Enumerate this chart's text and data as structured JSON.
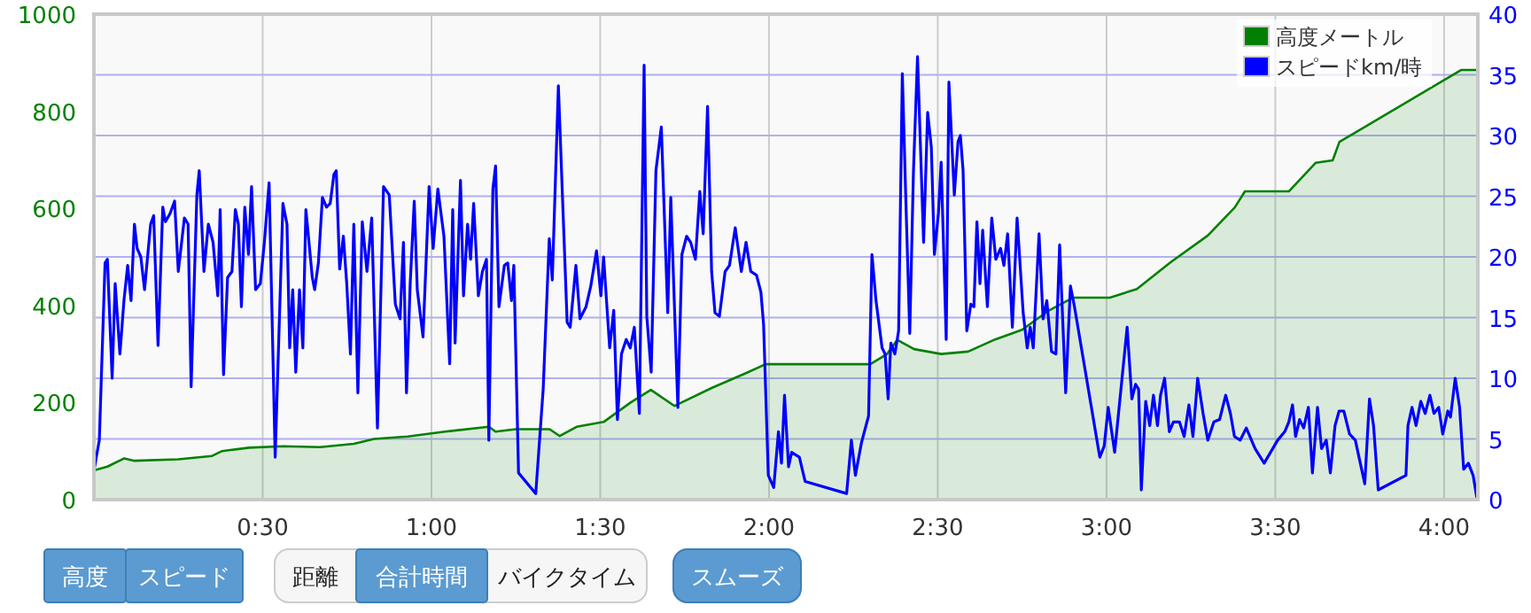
{
  "chart_data": {
    "type": "area",
    "xlim": [
      0,
      4.1
    ],
    "xticks": [
      {
        "value": 0.5,
        "label": "0:30"
      },
      {
        "value": 1,
        "label": "1:00"
      },
      {
        "value": 1.5,
        "label": "1:30"
      },
      {
        "value": 2,
        "label": "2:00"
      },
      {
        "value": 2.5,
        "label": "2:30"
      },
      {
        "value": 3,
        "label": "3:00"
      },
      {
        "value": 3.5,
        "label": "3:30"
      },
      {
        "value": 4,
        "label": "4:00"
      }
    ],
    "ylim": [
      0,
      1000
    ],
    "yticks": [
      0,
      200,
      400,
      600,
      800,
      1000
    ],
    "y2lim": [
      0,
      40
    ],
    "y2ticks": [
      0,
      5,
      10,
      15,
      20,
      25,
      30,
      35,
      40
    ],
    "grid": true,
    "legend": "top right",
    "marker": "none",
    "series": [
      {
        "name": "高度メートル",
        "color": "#008000",
        "x": [
          0,
          0.04,
          0.09,
          0.12,
          0.25,
          0.35,
          0.38,
          0.46,
          0.56,
          0.67,
          0.77,
          0.83,
          0.93,
          1.04,
          1.17,
          1.19,
          1.25,
          1.35,
          1.38,
          1.43,
          1.51,
          1.59,
          1.65,
          1.72,
          1.83,
          1.93,
          1.99,
          2.3,
          2.35,
          2.38,
          2.43,
          2.51,
          2.59,
          2.67,
          2.75,
          2.83,
          2.9,
          3.01,
          3.09,
          3.19,
          3.3,
          3.38,
          3.41,
          3.54,
          3.62,
          3.67,
          3.69,
          4.05,
          4.1
        ],
        "values": [
          60,
          68,
          85,
          80,
          83,
          90,
          100,
          107,
          110,
          108,
          115,
          125,
          130,
          140,
          150,
          140,
          145,
          145,
          131,
          150,
          160,
          200,
          226,
          193,
          230,
          260,
          279,
          279,
          300,
          329,
          310,
          300,
          305,
          330,
          350,
          390,
          416,
          416,
          434,
          489,
          544,
          602,
          635,
          635,
          694,
          699,
          737,
          885,
          885
        ]
      },
      {
        "name": "スピードkm/時",
        "type": "line",
        "axis": "y2",
        "color": "#0000ff",
        "x": [
          0,
          0.016,
          0.033,
          0.04,
          0.054,
          0.063,
          0.077,
          0.089,
          0.1,
          0.11,
          0.12,
          0.128,
          0.139,
          0.15,
          0.168,
          0.177,
          0.19,
          0.204,
          0.212,
          0.226,
          0.239,
          0.25,
          0.268,
          0.279,
          0.288,
          0.305,
          0.312,
          0.326,
          0.339,
          0.353,
          0.367,
          0.374,
          0.384,
          0.396,
          0.409,
          0.419,
          0.428,
          0.437,
          0.447,
          0.458,
          0.467,
          0.479,
          0.493,
          0.505,
          0.519,
          0.537,
          0.56,
          0.572,
          0.58,
          0.589,
          0.598,
          0.609,
          0.619,
          0.628,
          0.647,
          0.654,
          0.665,
          0.677,
          0.689,
          0.7,
          0.711,
          0.718,
          0.728,
          0.739,
          0.749,
          0.76,
          0.77,
          0.782,
          0.795,
          0.809,
          0.823,
          0.84,
          0.858,
          0.875,
          0.893,
          0.907,
          0.917,
          0.926,
          0.937,
          0.949,
          0.958,
          0.975,
          0.993,
          1.005,
          1.019,
          1.037,
          1.054,
          1.063,
          1.07,
          1.086,
          1.095,
          1.107,
          1.116,
          1.125,
          1.139,
          1.151,
          1.163,
          1.17,
          1.182,
          1.19,
          1.2,
          1.216,
          1.226,
          1.237,
          1.244,
          1.258,
          1.309,
          1.331,
          1.349,
          1.358,
          1.376,
          1.402,
          1.411,
          1.428,
          1.44,
          1.458,
          1.472,
          1.489,
          1.502,
          1.51,
          1.528,
          1.54,
          1.551,
          1.563,
          1.577,
          1.589,
          1.601,
          1.616,
          1.63,
          1.638,
          1.651,
          1.665,
          1.681,
          1.7,
          1.709,
          1.73,
          1.742,
          1.756,
          1.768,
          1.782,
          1.795,
          1.805,
          1.818,
          1.83,
          1.84,
          1.853,
          1.87,
          1.883,
          1.9,
          1.918,
          1.932,
          1.946,
          1.963,
          1.976,
          1.984,
          1.998,
          2.014,
          2.028,
          2.037,
          2.046,
          2.058,
          2.067,
          2.09,
          2.107,
          2.23,
          2.244,
          2.256,
          2.274,
          2.295,
          2.305,
          2.317,
          2.335,
          2.344,
          2.353,
          2.361,
          2.373,
          2.384,
          2.395,
          2.405,
          2.417,
          2.428,
          2.44,
          2.458,
          2.47,
          2.481,
          2.49,
          2.502,
          2.51,
          2.525,
          2.533,
          2.549,
          2.56,
          2.567,
          2.575,
          2.586,
          2.598,
          2.607,
          2.616,
          2.625,
          2.633,
          2.647,
          2.66,
          2.672,
          2.686,
          2.696,
          2.707,
          2.721,
          2.735,
          2.753,
          2.765,
          2.774,
          2.783,
          2.8,
          2.812,
          2.823,
          2.837,
          2.85,
          2.861,
          2.879,
          2.893,
          2.905,
          2.98,
          2.993,
          3.005,
          3.024,
          3.061,
          3.075,
          3.086,
          3.095,
          3.103,
          3.116,
          3.128,
          3.139,
          3.151,
          3.16,
          3.172,
          3.186,
          3.198,
          3.216,
          3.23,
          3.244,
          3.256,
          3.27,
          3.286,
          3.3,
          3.318,
          3.335,
          3.353,
          3.367,
          3.379,
          3.396,
          3.414,
          3.44,
          3.467,
          3.507,
          3.528,
          3.54,
          3.551,
          3.56,
          3.572,
          3.584,
          3.598,
          3.61,
          3.625,
          3.637,
          3.651,
          3.663,
          3.677,
          3.689,
          3.703,
          3.72,
          3.737,
          3.765,
          3.779,
          3.791,
          3.805,
          3.887,
          3.893,
          3.905,
          3.917,
          3.931,
          3.944,
          3.958,
          3.97,
          3.984,
          3.996,
          4.011,
          4.019,
          4.033,
          4.046,
          4.058,
          4.072,
          4.086,
          4.098
        ],
        "values": [
          2.4,
          4.9,
          19.5,
          19.8,
          10,
          17.8,
          12,
          16.4,
          19.3,
          16.4,
          22.7,
          20.7,
          20,
          17.3,
          22.7,
          23.4,
          12.7,
          24.1,
          22.9,
          23.6,
          24.6,
          18.8,
          23.2,
          22.7,
          9.3,
          25.1,
          27.1,
          18.8,
          22.7,
          21.2,
          16.8,
          23.9,
          10.3,
          18.3,
          18.8,
          23.9,
          22.7,
          15.9,
          24.1,
          20.2,
          25.8,
          17.3,
          17.8,
          21.2,
          26.1,
          3.5,
          24.4,
          22.7,
          12.5,
          17.3,
          10.5,
          17.3,
          12.5,
          23.9,
          18.3,
          17.3,
          19.5,
          24.9,
          24.1,
          24.4,
          26.8,
          27.1,
          19,
          21.7,
          17.8,
          12,
          22.7,
          8.8,
          22.9,
          18.8,
          23.2,
          5.9,
          25.8,
          25.1,
          16.1,
          14.9,
          21.2,
          8.8,
          17.8,
          24.6,
          17.3,
          13.4,
          25.8,
          20.7,
          25.6,
          21.7,
          11.2,
          23.9,
          12.9,
          26.3,
          16.8,
          22.7,
          19.8,
          24.4,
          16.8,
          18.8,
          19.8,
          4.9,
          25.6,
          27.5,
          15.9,
          19.3,
          19.5,
          16.4,
          19.3,
          2.2,
          0.5,
          9.1,
          21.5,
          18.1,
          34.1,
          14.6,
          14.2,
          19.3,
          14.9,
          15.9,
          17.6,
          20.5,
          16.8,
          20,
          12.5,
          15.6,
          6.6,
          12,
          13.2,
          12.5,
          14.2,
          7.1,
          35.8,
          15.1,
          10.5,
          27.1,
          30.7,
          15.4,
          24.9,
          7.6,
          20.2,
          21.7,
          21.2,
          19.8,
          25.4,
          21.9,
          32.4,
          18.8,
          15.4,
          15.1,
          18.8,
          19.3,
          22.4,
          18.8,
          21.2,
          18.8,
          18.5,
          17.1,
          14.4,
          2,
          1,
          5.6,
          3,
          8.6,
          2.7,
          3.9,
          3.5,
          1.5,
          0.5,
          4.9,
          2,
          4.7,
          6.9,
          20.2,
          16.4,
          12.5,
          12,
          8.3,
          12.9,
          12,
          13.9,
          35.1,
          25.1,
          13.7,
          27.1,
          36.5,
          21.2,
          31.9,
          29,
          20.2,
          23.6,
          27.8,
          13.2,
          34.4,
          25.1,
          29.5,
          30,
          27.1,
          13.9,
          16.1,
          15.9,
          22.9,
          17.8,
          22.2,
          15.9,
          23.2,
          19.8,
          20.7,
          19.3,
          21.9,
          14.2,
          23.2,
          15.4,
          12.5,
          14.2,
          12.5,
          21.9,
          14.9,
          16.4,
          12.2,
          12,
          21,
          8.8,
          17.6,
          15.9,
          3.5,
          4.4,
          7.6,
          3.9,
          14.2,
          8.3,
          9.5,
          9.1,
          0.8,
          8.1,
          6.1,
          8.6,
          6.1,
          8.6,
          10,
          5.6,
          6.4,
          6.4,
          5.2,
          7.8,
          5.2,
          10,
          7.1,
          4.9,
          6.4,
          6.6,
          8.6,
          7.1,
          5.2,
          4.9,
          5.9,
          4.2,
          3,
          4.9,
          5.6,
          6.4,
          7.8,
          5.2,
          6.6,
          5.9,
          7.6,
          2.2,
          7.6,
          4.2,
          4.9,
          2.2,
          6.1,
          7.3,
          7.3,
          5.4,
          4.9,
          1.3,
          8.3,
          6.1,
          0.8,
          2,
          6.1,
          7.6,
          6.1,
          8.1,
          7.1,
          8.6,
          7.1,
          7.6,
          5.4,
          7.3,
          6.8,
          10,
          7.6,
          2.5,
          3,
          2,
          0
        ]
      }
    ],
    "annotations": [
      "高度",
      "スピード",
      "距離",
      "合計時間",
      "バイクタイム",
      "スムーズ"
    ]
  }
}
